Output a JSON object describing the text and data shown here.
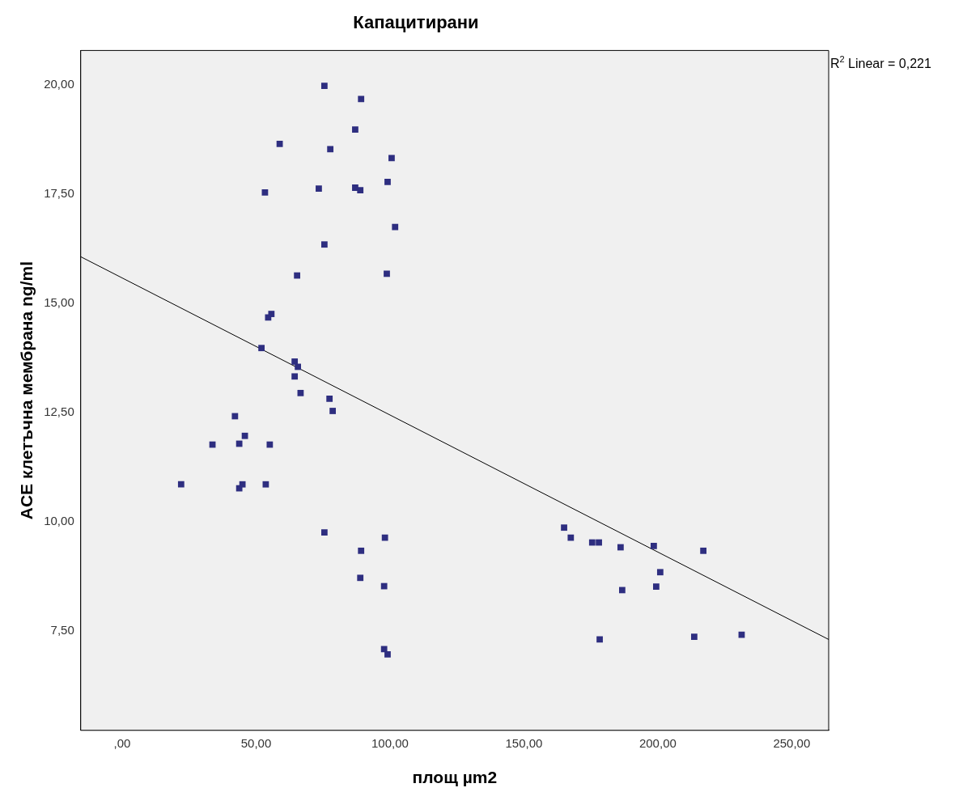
{
  "chart_data": {
    "type": "scatter",
    "title": "Капацитирани",
    "xlabel": "площ µm2",
    "ylabel": "ACE клетъчна мембрана ng/ml",
    "annotations": [
      "R$^{2}$ Linear = 0,221"
    ],
    "xlim": [
      -15.5,
      263.8
    ],
    "xticks": [
      {
        "value": 0,
        "label": ",00"
      },
      {
        "value": 50,
        "label": "50,00"
      },
      {
        "value": 100,
        "label": "100,00"
      },
      {
        "value": 150,
        "label": "150,00"
      },
      {
        "value": 200,
        "label": "200,00"
      },
      {
        "value": 250,
        "label": "250,00"
      }
    ],
    "ylim": [
      5.23,
      20.79
    ],
    "yticks": [
      {
        "value": 7.5,
        "label": "7,50"
      },
      {
        "value": 10,
        "label": "10,00"
      },
      {
        "value": 12.5,
        "label": "12,50"
      },
      {
        "value": 15,
        "label": "15,00"
      },
      {
        "value": 17.5,
        "label": "17,50"
      },
      {
        "value": 20,
        "label": "20,00"
      }
    ],
    "grid": false,
    "legend": false,
    "series": [
      {
        "type": "scatter",
        "marker": "square",
        "color": "#2e2e80",
        "x": [
          22.0,
          33.7,
          42.1,
          43.7,
          45.8,
          43.7,
          44.9,
          55.1,
          53.6,
          52.0,
          54.5,
          55.7,
          53.3,
          58.8,
          65.3,
          64.4,
          65.6,
          64.4,
          66.6,
          73.4,
          75.5,
          75.5,
          77.7,
          77.4,
          78.6,
          75.5,
          87.0,
          89.2,
          87.0,
          88.9,
          98.8,
          99.1,
          100.6,
          101.9,
          89.2,
          88.9,
          98.1,
          97.8,
          97.8,
          99.1,
          165.0,
          167.5,
          175.5,
          178.0,
          186.1,
          178.3,
          186.7,
          198.5,
          200.9,
          199.4,
          217.0,
          213.6,
          231.3
        ],
        "values": [
          10.86,
          11.77,
          12.42,
          11.79,
          11.97,
          10.77,
          10.86,
          11.77,
          10.86,
          13.98,
          14.68,
          14.76,
          17.54,
          18.65,
          15.64,
          13.67,
          13.55,
          13.33,
          12.95,
          17.63,
          19.98,
          16.35,
          18.53,
          12.82,
          12.54,
          9.76,
          18.98,
          19.68,
          17.65,
          17.59,
          15.68,
          17.78,
          18.33,
          16.75,
          9.34,
          8.72,
          9.64,
          8.53,
          7.09,
          6.97,
          9.87,
          9.64,
          9.53,
          9.53,
          9.42,
          7.31,
          8.44,
          9.45,
          8.85,
          8.52,
          9.34,
          7.37,
          7.42
        ]
      },
      {
        "type": "line",
        "marker": "none",
        "color": "#000000",
        "x": [
          -15.5,
          263.8
        ],
        "values": [
          16.07,
          7.31
        ]
      }
    ]
  }
}
